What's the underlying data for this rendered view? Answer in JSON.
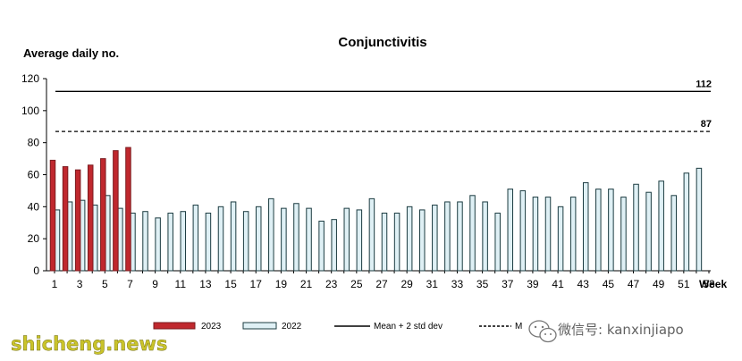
{
  "chart_data": {
    "type": "bar",
    "title": "Conjunctivitis",
    "ylabel": "Average daily no.",
    "xlabel": "Week",
    "ylim": [
      0,
      120
    ],
    "yticks": [
      0,
      20,
      40,
      60,
      80,
      100,
      120
    ],
    "xlim": [
      1,
      53
    ],
    "xticks": [
      1,
      3,
      5,
      7,
      9,
      11,
      13,
      15,
      17,
      19,
      21,
      23,
      25,
      27,
      29,
      31,
      33,
      35,
      37,
      39,
      41,
      43,
      45,
      47,
      49,
      51,
      53
    ],
    "grid": false,
    "legend_position": "bottom",
    "series": [
      {
        "name": "2023",
        "color": "#c0282e",
        "weeks": [
          1,
          2,
          3,
          4,
          5,
          6,
          7
        ],
        "values": [
          69,
          65,
          63,
          66,
          70,
          75,
          77
        ]
      },
      {
        "name": "2022",
        "color": "#dff0f5",
        "weeks": [
          1,
          2,
          3,
          4,
          5,
          6,
          7,
          8,
          9,
          10,
          11,
          12,
          13,
          14,
          15,
          16,
          17,
          18,
          19,
          20,
          21,
          22,
          23,
          24,
          25,
          26,
          27,
          28,
          29,
          30,
          31,
          32,
          33,
          34,
          35,
          36,
          37,
          38,
          39,
          40,
          41,
          42,
          43,
          44,
          45,
          46,
          47,
          48,
          49,
          50,
          51,
          52
        ],
        "values": [
          38,
          43,
          44,
          41,
          47,
          39,
          36,
          37,
          33,
          36,
          37,
          41,
          36,
          40,
          43,
          37,
          40,
          45,
          39,
          42,
          39,
          31,
          32,
          39,
          38,
          45,
          36,
          36,
          40,
          38,
          41,
          43,
          43,
          47,
          43,
          36,
          51,
          50,
          46,
          46,
          40,
          46,
          55,
          51,
          51,
          46,
          54,
          49,
          56,
          47,
          61,
          64
        ]
      }
    ],
    "reference_lines": [
      {
        "name": "Mean + 2 std dev",
        "value": 112,
        "label": "112",
        "style": "solid"
      },
      {
        "name": "Mean",
        "value": 87,
        "label": "87",
        "style": "dashed"
      }
    ]
  },
  "legend": {
    "item_2023": "2023",
    "item_2022": "2022",
    "item_mean_2sd": "Mean + 2 std dev",
    "item_mean_partial": "M"
  },
  "watermarks": {
    "left": "shicheng.news",
    "right_handle": "微信号: kanxinjiapo"
  },
  "colors": {
    "bar_2023_fill": "#c0282e",
    "bar_2023_stroke": "#7a1a1e",
    "bar_2022_fill": "#dff0f5",
    "bar_2022_stroke": "#1b3b40",
    "watermark_left": "#c9c32a"
  },
  "icons": {
    "wechat": "wechat-logo-icon"
  }
}
